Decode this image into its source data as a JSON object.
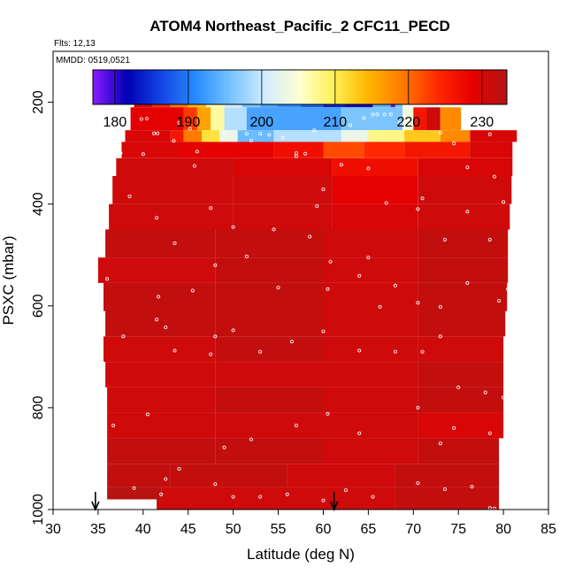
{
  "chart_data": {
    "type": "heatmap",
    "title": "ATOM4 Northeast_Pacific_2 CFC11_PECD",
    "info_lines": [
      "Flts: 12,13",
      "MMDD: 0519,0521"
    ],
    "xlabel": "Latitude (deg N)",
    "ylabel": "PSXC (mbar)",
    "xlim": [
      30,
      85
    ],
    "ylim": [
      1000,
      100
    ],
    "x_ticks": [
      30,
      35,
      40,
      45,
      50,
      55,
      60,
      65,
      70,
      75,
      80,
      85
    ],
    "y_ticks": [
      200,
      400,
      600,
      800,
      1000
    ],
    "colorbar": {
      "range": [
        177,
        233.4
      ],
      "ticks": [
        180,
        190,
        200,
        210,
        220,
        230
      ],
      "stops": [
        "#8b1aff",
        "#0000b4",
        "#1446e6",
        "#288cff",
        "#78c3ff",
        "#d2ecff",
        "#ffffd2",
        "#fff050",
        "#ffb400",
        "#ff7800",
        "#ff2800",
        "#e60000",
        "#b41414"
      ]
    },
    "flight_markers_lat": [
      34.7,
      61.2
    ],
    "rows": [
      {
        "p": [
          170,
          210
        ],
        "segments": [
          {
            "from": 39.0,
            "to": 41.0,
            "v": 231
          },
          {
            "from": 41.0,
            "to": 43.0,
            "v": 224
          },
          {
            "from": 43.0,
            "to": 45.0,
            "v": 219
          },
          {
            "from": 45.0,
            "to": 47.0,
            "v": 214
          },
          {
            "from": 47.0,
            "to": 49.0,
            "v": 206
          },
          {
            "from": 49.0,
            "to": 51.0,
            "v": 201
          },
          {
            "from": 51.0,
            "to": 53.0,
            "v": 196
          },
          {
            "from": 53.0,
            "to": 55.0,
            "v": 193
          },
          {
            "from": 55.0,
            "to": 57.5,
            "v": 191
          },
          {
            "from": 57.5,
            "to": 60.0,
            "v": 188
          },
          {
            "from": 60.0,
            "to": 62.5,
            "v": 184
          },
          {
            "from": 62.5,
            "to": 65.5,
            "v": 181
          },
          {
            "from": 65.5,
            "to": 67.5,
            "v": 194
          },
          {
            "from": 67.5,
            "to": 68.0,
            "v": 178
          },
          {
            "from": 68.0,
            "to": 68.8,
            "v": 196
          }
        ]
      },
      {
        "p": [
          210,
          255
        ],
        "segments": [
          {
            "from": 38.6,
            "to": 44.5,
            "v": 229
          },
          {
            "from": 44.5,
            "to": 46.0,
            "v": 223
          },
          {
            "from": 46.0,
            "to": 47.5,
            "v": 216
          },
          {
            "from": 47.5,
            "to": 49.0,
            "v": 207
          },
          {
            "from": 49.0,
            "to": 51.5,
            "v": 199
          },
          {
            "from": 51.5,
            "to": 62.0,
            "v": 193
          },
          {
            "from": 62.0,
            "to": 68.8,
            "v": 196
          },
          {
            "from": 68.8,
            "to": 70.0,
            "v": 204
          },
          {
            "from": 70.0,
            "to": 71.5,
            "v": 226
          },
          {
            "from": 71.5,
            "to": 73.0,
            "v": 231
          },
          {
            "from": 73.0,
            "to": 75.3,
            "v": 218
          }
        ]
      },
      {
        "p": [
          255,
          278
        ],
        "segments": [
          {
            "from": 38.0,
            "to": 43.0,
            "v": 230
          },
          {
            "from": 43.0,
            "to": 44.5,
            "v": 226
          },
          {
            "from": 44.5,
            "to": 46.5,
            "v": 219
          },
          {
            "from": 46.5,
            "to": 48.5,
            "v": 211
          },
          {
            "from": 48.5,
            "to": 50.5,
            "v": 203
          },
          {
            "from": 50.5,
            "to": 54.5,
            "v": 195
          },
          {
            "from": 54.5,
            "to": 62.0,
            "v": 199
          },
          {
            "from": 62.0,
            "to": 65.0,
            "v": 203
          },
          {
            "from": 65.0,
            "to": 69.0,
            "v": 208
          },
          {
            "from": 69.0,
            "to": 73.0,
            "v": 213
          },
          {
            "from": 73.0,
            "to": 76.3,
            "v": 218
          },
          {
            "from": 76.3,
            "to": 81.5,
            "v": 230
          }
        ]
      },
      {
        "p": [
          278,
          310
        ],
        "segments": [
          {
            "from": 37.6,
            "to": 44.0,
            "v": 230
          },
          {
            "from": 44.0,
            "to": 54.5,
            "v": 229
          },
          {
            "from": 54.5,
            "to": 60.0,
            "v": 227
          },
          {
            "from": 60.0,
            "to": 64.5,
            "v": 222
          },
          {
            "from": 64.5,
            "to": 69.0,
            "v": 224
          },
          {
            "from": 69.0,
            "to": 76.3,
            "v": 226
          },
          {
            "from": 76.3,
            "to": 81.0,
            "v": 230
          }
        ]
      },
      {
        "p": [
          310,
          345
        ],
        "segments": [
          {
            "from": 37.0,
            "to": 50.0,
            "v": 231
          },
          {
            "from": 50.0,
            "to": 61.0,
            "v": 230
          },
          {
            "from": 61.0,
            "to": 70.5,
            "v": 227
          },
          {
            "from": 70.5,
            "to": 81.0,
            "v": 230
          }
        ]
      },
      {
        "p": [
          345,
          400
        ],
        "segments": [
          {
            "from": 36.6,
            "to": 50.0,
            "v": 231
          },
          {
            "from": 50.0,
            "to": 61.0,
            "v": 231
          },
          {
            "from": 61.0,
            "to": 70.5,
            "v": 229
          },
          {
            "from": 70.5,
            "to": 80.9,
            "v": 231
          }
        ]
      },
      {
        "p": [
          400,
          450
        ],
        "segments": [
          {
            "from": 36.2,
            "to": 50.0,
            "v": 231
          },
          {
            "from": 50.0,
            "to": 61.0,
            "v": 231
          },
          {
            "from": 61.0,
            "to": 70.5,
            "v": 230
          },
          {
            "from": 70.5,
            "to": 80.7,
            "v": 231
          }
        ]
      },
      {
        "p": [
          450,
          505
        ],
        "segments": [
          {
            "from": 35.8,
            "to": 48.0,
            "v": 232
          },
          {
            "from": 48.0,
            "to": 60.0,
            "v": 232
          },
          {
            "from": 60.0,
            "to": 70.5,
            "v": 231
          },
          {
            "from": 70.5,
            "to": 80.5,
            "v": 232
          }
        ]
      },
      {
        "p": [
          505,
          555
        ],
        "segments": [
          {
            "from": 35.0,
            "to": 48.0,
            "v": 231
          },
          {
            "from": 48.0,
            "to": 60.0,
            "v": 232
          },
          {
            "from": 60.0,
            "to": 70.5,
            "v": 231
          },
          {
            "from": 70.5,
            "to": 80.5,
            "v": 232
          }
        ]
      },
      {
        "p": [
          555,
          610
        ],
        "segments": [
          {
            "from": 35.6,
            "to": 48.0,
            "v": 232
          },
          {
            "from": 48.0,
            "to": 60.0,
            "v": 232
          },
          {
            "from": 60.0,
            "to": 70.5,
            "v": 231
          },
          {
            "from": 70.5,
            "to": 80.4,
            "v": 232
          }
        ]
      },
      {
        "p": [
          610,
          660
        ],
        "segments": [
          {
            "from": 35.8,
            "to": 48.0,
            "v": 232
          },
          {
            "from": 48.0,
            "to": 60.0,
            "v": 232
          },
          {
            "from": 60.0,
            "to": 70.5,
            "v": 231
          },
          {
            "from": 70.5,
            "to": 80.2,
            "v": 232
          }
        ]
      },
      {
        "p": [
          660,
          710
        ],
        "segments": [
          {
            "from": 35.6,
            "to": 48.0,
            "v": 231
          },
          {
            "from": 48.0,
            "to": 60.0,
            "v": 232
          },
          {
            "from": 60.0,
            "to": 70.5,
            "v": 231
          },
          {
            "from": 70.5,
            "to": 80.0,
            "v": 231
          }
        ]
      },
      {
        "p": [
          710,
          760
        ],
        "segments": [
          {
            "from": 35.8,
            "to": 48.0,
            "v": 231
          },
          {
            "from": 48.0,
            "to": 60.0,
            "v": 231
          },
          {
            "from": 60.0,
            "to": 70.5,
            "v": 231
          },
          {
            "from": 70.5,
            "to": 80.0,
            "v": 232
          }
        ]
      },
      {
        "p": [
          760,
          810
        ],
        "segments": [
          {
            "from": 36.0,
            "to": 48.0,
            "v": 231
          },
          {
            "from": 48.0,
            "to": 60.0,
            "v": 232
          },
          {
            "from": 60.0,
            "to": 70.5,
            "v": 231
          },
          {
            "from": 70.5,
            "to": 80.0,
            "v": 232
          }
        ]
      },
      {
        "p": [
          810,
          860
        ],
        "segments": [
          {
            "from": 36.0,
            "to": 48.0,
            "v": 231
          },
          {
            "from": 48.0,
            "to": 60.0,
            "v": 231
          },
          {
            "from": 60.0,
            "to": 70.5,
            "v": 231
          },
          {
            "from": 70.5,
            "to": 80.0,
            "v": 230
          }
        ]
      },
      {
        "p": [
          860,
          910
        ],
        "segments": [
          {
            "from": 36.0,
            "to": 48.0,
            "v": 232
          },
          {
            "from": 48.0,
            "to": 60.0,
            "v": 232
          },
          {
            "from": 60.0,
            "to": 70.5,
            "v": 231
          },
          {
            "from": 70.5,
            "to": 79.5,
            "v": 232
          }
        ]
      },
      {
        "p": [
          910,
          955
        ],
        "segments": [
          {
            "from": 36.0,
            "to": 43.0,
            "v": 232
          },
          {
            "from": 43.0,
            "to": 56.0,
            "v": 232
          },
          {
            "from": 56.0,
            "to": 68.0,
            "v": 231
          },
          {
            "from": 68.0,
            "to": 79.5,
            "v": 232
          }
        ]
      },
      {
        "p": [
          955,
          980
        ],
        "segments": [
          {
            "from": 36.0,
            "to": 42.0,
            "v": 233
          },
          {
            "from": 42.0,
            "to": 55.0,
            "v": 231
          },
          {
            "from": 55.0,
            "to": 68.0,
            "v": 231
          },
          {
            "from": 68.0,
            "to": 79.5,
            "v": 232
          }
        ]
      },
      {
        "p": [
          980,
          1000
        ],
        "segments": [
          {
            "from": 41.5,
            "to": 55.0,
            "v": 231
          },
          {
            "from": 55.0,
            "to": 68.0,
            "v": 231
          },
          {
            "from": 68.0,
            "to": 79.5,
            "v": 232
          }
        ]
      }
    ],
    "sample_points": [
      [
        39.8,
        233
      ],
      [
        40.4,
        232
      ],
      [
        41.2,
        261
      ],
      [
        41.6,
        261
      ],
      [
        43.4,
        276
      ],
      [
        44.0,
        240
      ],
      [
        45.2,
        252
      ],
      [
        49.0,
        260
      ],
      [
        51.5,
        262
      ],
      [
        53.0,
        262
      ],
      [
        54.0,
        264
      ],
      [
        55.5,
        270
      ],
      [
        57.0,
        300
      ],
      [
        58.0,
        301
      ],
      [
        59.0,
        255
      ],
      [
        63.0,
        245
      ],
      [
        64.5,
        231
      ],
      [
        65.5,
        224
      ],
      [
        66.0,
        224
      ],
      [
        66.8,
        224
      ],
      [
        67.5,
        224
      ],
      [
        68.5,
        240
      ],
      [
        69.0,
        245
      ],
      [
        73.0,
        260
      ],
      [
        74.5,
        281
      ],
      [
        78.5,
        263
      ],
      [
        37.5,
        300
      ],
      [
        40.0,
        302
      ],
      [
        45.7,
        325
      ],
      [
        46.0,
        297
      ],
      [
        52.0,
        275
      ],
      [
        57.0,
        306
      ],
      [
        59.3,
        404
      ],
      [
        60.0,
        371
      ],
      [
        62.0,
        323
      ],
      [
        65.0,
        330
      ],
      [
        67.0,
        398
      ],
      [
        71.0,
        389
      ],
      [
        76.0,
        328
      ],
      [
        79.0,
        346
      ],
      [
        80.0,
        396
      ],
      [
        41.5,
        427
      ],
      [
        43.5,
        477
      ],
      [
        47.5,
        408
      ],
      [
        50.0,
        445
      ],
      [
        54.5,
        450
      ],
      [
        58.5,
        464
      ],
      [
        60.8,
        513
      ],
      [
        65.0,
        505
      ],
      [
        70.5,
        410
      ],
      [
        73.5,
        470
      ],
      [
        76.0,
        415
      ],
      [
        78.5,
        470
      ],
      [
        38.5,
        385
      ],
      [
        36.0,
        547
      ],
      [
        41.7,
        582
      ],
      [
        45.5,
        570
      ],
      [
        48.0,
        520
      ],
      [
        51.5,
        503
      ],
      [
        55.0,
        564
      ],
      [
        60.5,
        567
      ],
      [
        64.0,
        541
      ],
      [
        66.3,
        602
      ],
      [
        68.0,
        560
      ],
      [
        70.5,
        594
      ],
      [
        73.0,
        602
      ],
      [
        76.0,
        555
      ],
      [
        79.5,
        590
      ],
      [
        80.5,
        567
      ],
      [
        37.8,
        660
      ],
      [
        41.5,
        627
      ],
      [
        42.5,
        642
      ],
      [
        43.5,
        688
      ],
      [
        47.5,
        695
      ],
      [
        48.0,
        660
      ],
      [
        50.0,
        648
      ],
      [
        53.0,
        690
      ],
      [
        56.5,
        670
      ],
      [
        60.0,
        650
      ],
      [
        64.0,
        688
      ],
      [
        68.0,
        690
      ],
      [
        71.0,
        690
      ],
      [
        73.0,
        660
      ],
      [
        75.0,
        760
      ],
      [
        78.0,
        770
      ],
      [
        35.5,
        712
      ],
      [
        36.7,
        835
      ],
      [
        40.5,
        813
      ],
      [
        42.5,
        940
      ],
      [
        44.0,
        920
      ],
      [
        49.0,
        878
      ],
      [
        52.0,
        862
      ],
      [
        57.0,
        835
      ],
      [
        60.5,
        812
      ],
      [
        64.0,
        850
      ],
      [
        70.5,
        800
      ],
      [
        73.0,
        870
      ],
      [
        74.5,
        840
      ],
      [
        78.5,
        850
      ],
      [
        80.0,
        780
      ],
      [
        39.0,
        958
      ],
      [
        42.0,
        970
      ],
      [
        48.0,
        950
      ],
      [
        50.0,
        975
      ],
      [
        53.0,
        975
      ],
      [
        56.0,
        970
      ],
      [
        60.0,
        982
      ],
      [
        62.5,
        962
      ],
      [
        65.5,
        975
      ],
      [
        70.5,
        948
      ],
      [
        73.5,
        960
      ],
      [
        76.5,
        955
      ],
      [
        78.5,
        997
      ],
      [
        79.0,
        998
      ]
    ]
  }
}
